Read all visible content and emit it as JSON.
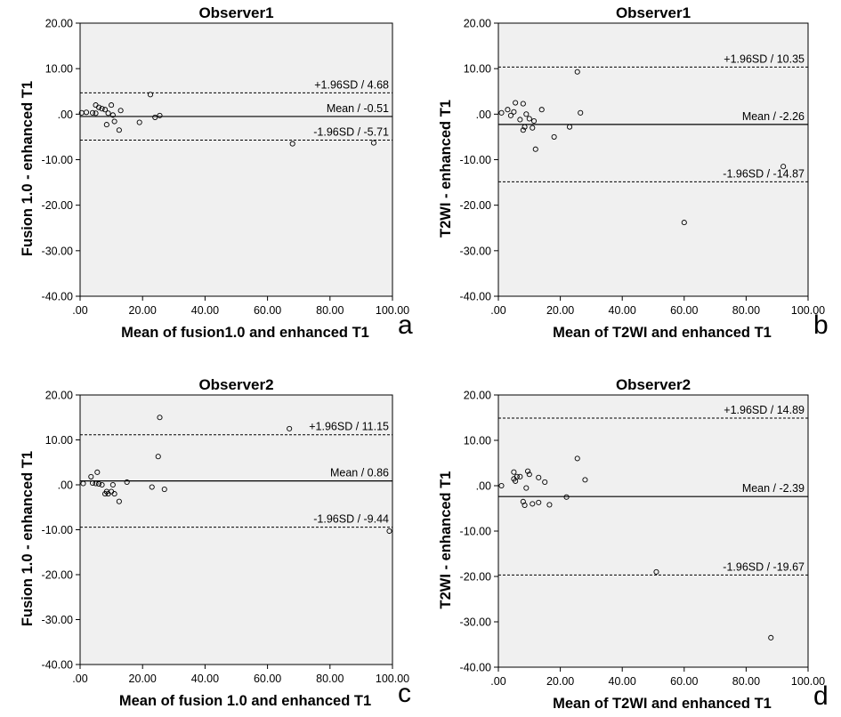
{
  "chart_data": [
    {
      "type": "scatter",
      "panel_letter": "a",
      "title": "Observer1",
      "xlabel": "Mean of fusion1.0 and enhanced T1",
      "ylabel": "Fusion 1.0 - enhanced T1",
      "xlim": [
        0,
        100
      ],
      "ylim": [
        -40,
        20
      ],
      "xticks": [
        0,
        20,
        40,
        60,
        80,
        100
      ],
      "xtick_labels": [
        ".00",
        "20.00",
        "40.00",
        "60.00",
        "80.00",
        "100.00"
      ],
      "yticks": [
        20,
        10,
        0,
        -10,
        -20,
        -30,
        -40
      ],
      "ytick_labels": [
        "20.00",
        "10.00",
        ".00",
        "-10.00",
        "-20.00",
        "-30.00",
        "-40.00"
      ],
      "lines": [
        {
          "kind": "upper",
          "value": 4.68,
          "label": "+1.96SD / 4.68"
        },
        {
          "kind": "mean",
          "value": -0.51,
          "label": "Mean / -0.51"
        },
        {
          "kind": "lower",
          "value": -5.71,
          "label": "-1.96SD / -5.71"
        }
      ],
      "points": [
        [
          0.5,
          0.3
        ],
        [
          2,
          0.4
        ],
        [
          4,
          0.3
        ],
        [
          5,
          0.2
        ],
        [
          5,
          2.0
        ],
        [
          6,
          1.5
        ],
        [
          7,
          1.2
        ],
        [
          8,
          1.0
        ],
        [
          8.5,
          -2.3
        ],
        [
          9,
          0.2
        ],
        [
          10,
          2.0
        ],
        [
          10.5,
          -0.2
        ],
        [
          11,
          -1.6
        ],
        [
          12.5,
          -3.5
        ],
        [
          13,
          0.8
        ],
        [
          19,
          -1.8
        ],
        [
          22.5,
          4.3
        ],
        [
          24,
          -0.7
        ],
        [
          25.5,
          -0.3
        ],
        [
          68,
          -6.5
        ],
        [
          94,
          -6.3
        ]
      ]
    },
    {
      "type": "scatter",
      "panel_letter": "b",
      "title": "Observer1",
      "xlabel": "Mean of T2WI and enhanced T1",
      "ylabel": "T2WI - enhanced T1",
      "xlim": [
        0,
        100
      ],
      "ylim": [
        -40,
        20
      ],
      "xticks": [
        0,
        20,
        40,
        60,
        80,
        100
      ],
      "xtick_labels": [
        ".00",
        "20.00",
        "40.00",
        "60.00",
        "80.00",
        "100.00"
      ],
      "yticks": [
        20,
        10,
        0,
        -10,
        -20,
        -30,
        -40
      ],
      "ytick_labels": [
        "20.00",
        "10.00",
        ".00",
        "-10.00",
        "-20.00",
        "-30.00",
        "-40.00"
      ],
      "lines": [
        {
          "kind": "upper",
          "value": 10.35,
          "label": "+1.96SD / 10.35"
        },
        {
          "kind": "mean",
          "value": -2.26,
          "label": "Mean / -2.26"
        },
        {
          "kind": "lower",
          "value": -14.87,
          "label": "-1.96SD / -14.87"
        }
      ],
      "points": [
        [
          1,
          0.3
        ],
        [
          3,
          1.0
        ],
        [
          4,
          -0.3
        ],
        [
          5,
          0.5
        ],
        [
          5.5,
          2.5
        ],
        [
          7,
          -1.2
        ],
        [
          8,
          -3.5
        ],
        [
          8,
          2.3
        ],
        [
          8.5,
          -2.8
        ],
        [
          9,
          0.0
        ],
        [
          10,
          -1.0
        ],
        [
          11,
          -3.0
        ],
        [
          11.5,
          -1.5
        ],
        [
          12,
          -7.7
        ],
        [
          14,
          1.0
        ],
        [
          18,
          -5.0
        ],
        [
          23,
          -2.8
        ],
        [
          25.5,
          9.3
        ],
        [
          26.5,
          0.3
        ],
        [
          60,
          -23.8
        ],
        [
          92,
          -11.5
        ]
      ]
    },
    {
      "type": "scatter",
      "panel_letter": "c",
      "title": "Observer2",
      "xlabel": "Mean of fusion 1.0 and enhanced T1",
      "ylabel": "Fusion 1.0 - enhanced T1",
      "xlim": [
        0,
        100
      ],
      "ylim": [
        -40,
        20
      ],
      "xticks": [
        0,
        20,
        40,
        60,
        80,
        100
      ],
      "xtick_labels": [
        ".00",
        "20.00",
        "40.00",
        "60.00",
        "80.00",
        "100.00"
      ],
      "yticks": [
        20,
        10,
        0,
        -10,
        -20,
        -30,
        -40
      ],
      "ytick_labels": [
        "20.00",
        "10.00",
        ".00",
        "-10.00",
        "-20.00",
        "-30.00",
        "-40.00"
      ],
      "lines": [
        {
          "kind": "upper",
          "value": 11.15,
          "label": "+1.96SD / 11.15"
        },
        {
          "kind": "mean",
          "value": 0.86,
          "label": "Mean / 0.86"
        },
        {
          "kind": "lower",
          "value": -9.44,
          "label": "-1.96SD / -9.44"
        }
      ],
      "points": [
        [
          1,
          0.3
        ],
        [
          3.5,
          1.8
        ],
        [
          4,
          0.4
        ],
        [
          5,
          0.3
        ],
        [
          5.5,
          2.8
        ],
        [
          6,
          0.2
        ],
        [
          7,
          0.0
        ],
        [
          8,
          -2.0
        ],
        [
          8.5,
          -1.5
        ],
        [
          9,
          -2.0
        ],
        [
          10,
          -1.5
        ],
        [
          10.5,
          0.0
        ],
        [
          11,
          -2.0
        ],
        [
          12.5,
          -3.7
        ],
        [
          15,
          0.6
        ],
        [
          23,
          -0.5
        ],
        [
          25,
          6.3
        ],
        [
          25.5,
          15.0
        ],
        [
          27,
          -1.0
        ],
        [
          67,
          12.5
        ],
        [
          99,
          -10.3
        ]
      ]
    },
    {
      "type": "scatter",
      "panel_letter": "d",
      "title": "Observer2",
      "xlabel": "Mean of T2WI and enhanced T1",
      "ylabel": "T2WI - enhanced T1",
      "xlim": [
        0,
        100
      ],
      "ylim": [
        -40,
        20
      ],
      "xticks": [
        0,
        20,
        40,
        60,
        80,
        100
      ],
      "xtick_labels": [
        ".00",
        "20.00",
        "40.00",
        "60.00",
        "80.00",
        "100.00"
      ],
      "yticks": [
        20,
        10,
        0,
        -10,
        -20,
        -30,
        -40
      ],
      "ytick_labels": [
        "20.00",
        "10.00",
        ".00",
        "-10.00",
        "-20.00",
        "-30.00",
        "-40.00"
      ],
      "lines": [
        {
          "kind": "upper",
          "value": 14.89,
          "label": "+1.96SD / 14.89"
        },
        {
          "kind": "mean",
          "value": -2.39,
          "label": "Mean / -2.39"
        },
        {
          "kind": "lower",
          "value": -19.67,
          "label": "-1.96SD / -19.67"
        }
      ],
      "points": [
        [
          1,
          0.0
        ],
        [
          5,
          3.0
        ],
        [
          5,
          1.5
        ],
        [
          5.5,
          1.0
        ],
        [
          6,
          2.0
        ],
        [
          7,
          2.0
        ],
        [
          8,
          -3.5
        ],
        [
          8.5,
          -4.3
        ],
        [
          9,
          -0.5
        ],
        [
          9.5,
          3.2
        ],
        [
          10,
          2.5
        ],
        [
          11,
          -4.0
        ],
        [
          13,
          -3.7
        ],
        [
          13,
          1.8
        ],
        [
          15,
          0.8
        ],
        [
          16.5,
          -4.2
        ],
        [
          22,
          -2.5
        ],
        [
          25.5,
          6.0
        ],
        [
          28,
          1.3
        ],
        [
          51,
          -19.0
        ],
        [
          88,
          -33.5
        ]
      ]
    }
  ]
}
